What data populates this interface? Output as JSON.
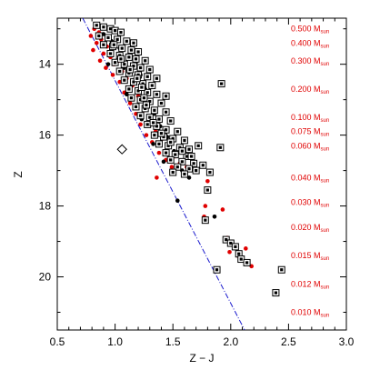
{
  "chart_data": {
    "type": "scatter",
    "xlabel": "Z − J",
    "ylabel": "Z",
    "xlim": [
      0.5,
      3.0
    ],
    "ylim": [
      21.5,
      12.7
    ],
    "y_inverted": true,
    "x_ticks": [
      "0.5",
      "1.0",
      "1.5",
      "2.0",
      "2.5",
      "3.0"
    ],
    "y_ticks": [
      "14",
      "16",
      "18",
      "20"
    ],
    "colors": {
      "red": "#e00000",
      "black": "#000000",
      "line": "#1a1acd"
    },
    "mass_labels": [
      {
        "value": "0.500",
        "unit": "M",
        "sub": "sun",
        "z": 13.0
      },
      {
        "value": "0.400",
        "unit": "M",
        "sub": "sun",
        "z": 13.4
      },
      {
        "value": "0.300",
        "unit": "M",
        "sub": "sun",
        "z": 13.9
      },
      {
        "value": "0.200",
        "unit": "M",
        "sub": "sun",
        "z": 14.7
      },
      {
        "value": "0.100",
        "unit": "M",
        "sub": "sun",
        "z": 15.5
      },
      {
        "value": "0.075",
        "unit": "M",
        "sub": "sun",
        "z": 15.9
      },
      {
        "value": "0.060",
        "unit": "M",
        "sub": "sun",
        "z": 16.3
      },
      {
        "value": "0.040",
        "unit": "M",
        "sub": "sun",
        "z": 17.2
      },
      {
        "value": "0.030",
        "unit": "M",
        "sub": "sun",
        "z": 17.9
      },
      {
        "value": "0.020",
        "unit": "M",
        "sub": "sun",
        "z": 18.6
      },
      {
        "value": "0.015",
        "unit": "M",
        "sub": "sun",
        "z": 19.4
      },
      {
        "value": "0.012",
        "unit": "M",
        "sub": "sun",
        "z": 20.2
      },
      {
        "value": "0.010",
        "unit": "M",
        "sub": "sun",
        "z": 21.0
      }
    ],
    "limit_line": [
      [
        0.72,
        12.7
      ],
      [
        2.12,
        21.5
      ]
    ],
    "diamond_point": [
      1.06,
      16.4
    ],
    "series": [
      {
        "marker": "filled-circle-red",
        "points": [
          [
            0.82,
            13.0
          ],
          [
            0.86,
            13.1
          ],
          [
            0.79,
            13.2
          ],
          [
            0.88,
            13.3
          ],
          [
            0.84,
            13.4
          ],
          [
            0.93,
            13.5
          ],
          [
            0.81,
            13.6
          ],
          [
            0.9,
            13.7
          ],
          [
            0.96,
            13.8
          ],
          [
            0.87,
            13.9
          ],
          [
            0.99,
            14.0
          ],
          [
            1.03,
            13.9
          ],
          [
            0.92,
            14.1
          ],
          [
            1.06,
            14.2
          ],
          [
            0.98,
            14.3
          ],
          [
            1.1,
            14.4
          ],
          [
            1.04,
            14.5
          ],
          [
            1.15,
            14.6
          ],
          [
            1.08,
            14.8
          ],
          [
            1.2,
            14.9
          ],
          [
            1.13,
            15.1
          ],
          [
            1.25,
            15.3
          ],
          [
            1.18,
            15.4
          ],
          [
            1.3,
            15.6
          ],
          [
            1.22,
            15.7
          ],
          [
            1.35,
            15.9
          ],
          [
            1.27,
            16.0
          ],
          [
            1.41,
            16.1
          ],
          [
            1.32,
            16.2
          ],
          [
            1.47,
            16.3
          ],
          [
            1.38,
            16.5
          ],
          [
            1.52,
            16.6
          ],
          [
            1.44,
            16.7
          ],
          [
            1.56,
            16.8
          ],
          [
            1.49,
            16.9
          ],
          [
            1.36,
            17.2
          ],
          [
            1.62,
            16.9
          ],
          [
            1.8,
            17.3
          ],
          [
            1.78,
            18.0
          ],
          [
            1.93,
            18.1
          ],
          [
            1.77,
            18.3
          ],
          [
            1.97,
            18.9
          ],
          [
            2.06,
            19.4
          ],
          [
            2.13,
            19.2
          ],
          [
            2.18,
            19.7
          ],
          [
            1.99,
            19.3
          ],
          [
            2.02,
            19.1
          ]
        ]
      },
      {
        "marker": "filled-circle-black",
        "points": [
          [
            0.9,
            13.15
          ],
          [
            0.97,
            13.35
          ],
          [
            1.04,
            13.55
          ],
          [
            1.11,
            13.75
          ],
          [
            1.18,
            13.95
          ],
          [
            1.08,
            14.1
          ],
          [
            1.22,
            14.3
          ],
          [
            0.94,
            14.0
          ],
          [
            1.15,
            14.55
          ],
          [
            1.26,
            14.7
          ],
          [
            1.1,
            14.85
          ],
          [
            1.29,
            15.0
          ],
          [
            1.17,
            15.2
          ],
          [
            1.34,
            15.4
          ],
          [
            1.23,
            15.55
          ],
          [
            1.39,
            15.75
          ],
          [
            1.45,
            16.05
          ],
          [
            1.33,
            16.25
          ],
          [
            1.51,
            16.45
          ],
          [
            1.42,
            16.75
          ],
          [
            1.58,
            17.0
          ],
          [
            1.64,
            17.2
          ],
          [
            1.54,
            17.85
          ],
          [
            1.86,
            18.3
          ]
        ]
      },
      {
        "marker": "boxed-square",
        "points": [
          [
            0.84,
            12.9
          ],
          [
            0.9,
            12.95
          ],
          [
            0.96,
            13.0
          ],
          [
            1.0,
            13.05
          ],
          [
            1.05,
            13.1
          ],
          [
            0.86,
            13.2
          ],
          [
            0.94,
            13.25
          ],
          [
            1.02,
            13.3
          ],
          [
            1.1,
            13.35
          ],
          [
            1.16,
            13.4
          ],
          [
            0.9,
            13.45
          ],
          [
            0.98,
            13.5
          ],
          [
            1.06,
            13.55
          ],
          [
            1.14,
            13.6
          ],
          [
            1.2,
            13.65
          ],
          [
            0.96,
            13.7
          ],
          [
            1.04,
            13.75
          ],
          [
            1.12,
            13.8
          ],
          [
            1.18,
            13.85
          ],
          [
            1.26,
            13.9
          ],
          [
            1.0,
            13.95
          ],
          [
            1.08,
            14.0
          ],
          [
            1.16,
            14.05
          ],
          [
            1.22,
            14.1
          ],
          [
            1.3,
            14.15
          ],
          [
            1.04,
            14.2
          ],
          [
            1.12,
            14.25
          ],
          [
            1.2,
            14.3
          ],
          [
            1.28,
            14.35
          ],
          [
            1.36,
            14.4
          ],
          [
            1.08,
            14.45
          ],
          [
            1.16,
            14.5
          ],
          [
            1.24,
            14.55
          ],
          [
            1.32,
            14.6
          ],
          [
            1.12,
            14.7
          ],
          [
            1.2,
            14.75
          ],
          [
            1.28,
            14.8
          ],
          [
            1.36,
            14.85
          ],
          [
            1.44,
            14.9
          ],
          [
            1.14,
            14.95
          ],
          [
            1.22,
            15.0
          ],
          [
            1.3,
            15.05
          ],
          [
            1.4,
            15.1
          ],
          [
            1.18,
            15.2
          ],
          [
            1.26,
            15.25
          ],
          [
            1.34,
            15.3
          ],
          [
            1.44,
            15.35
          ],
          [
            1.22,
            15.45
          ],
          [
            1.3,
            15.5
          ],
          [
            1.38,
            15.55
          ],
          [
            1.48,
            15.6
          ],
          [
            1.28,
            15.7
          ],
          [
            1.36,
            15.75
          ],
          [
            1.44,
            15.85
          ],
          [
            1.54,
            15.9
          ],
          [
            1.34,
            16.0
          ],
          [
            1.42,
            16.05
          ],
          [
            1.5,
            16.1
          ],
          [
            1.6,
            16.15
          ],
          [
            1.38,
            16.25
          ],
          [
            1.46,
            16.3
          ],
          [
            1.56,
            16.35
          ],
          [
            1.64,
            16.4
          ],
          [
            1.44,
            16.5
          ],
          [
            1.52,
            16.55
          ],
          [
            1.62,
            16.6
          ],
          [
            1.48,
            16.7
          ],
          [
            1.58,
            16.75
          ],
          [
            1.68,
            16.8
          ],
          [
            1.54,
            16.9
          ],
          [
            1.64,
            16.95
          ],
          [
            1.5,
            17.05
          ],
          [
            1.6,
            17.1
          ],
          [
            1.72,
            16.3
          ],
          [
            1.76,
            16.85
          ],
          [
            1.82,
            17.05
          ],
          [
            1.8,
            17.55
          ],
          [
            1.92,
            14.55
          ],
          [
            1.91,
            16.35
          ],
          [
            1.78,
            18.4
          ],
          [
            1.96,
            18.95
          ],
          [
            2.0,
            19.05
          ],
          [
            2.04,
            19.15
          ],
          [
            2.07,
            19.35
          ],
          [
            2.09,
            19.5
          ],
          [
            2.14,
            19.6
          ],
          [
            1.88,
            19.8
          ],
          [
            2.44,
            19.8
          ],
          [
            2.39,
            20.45
          ],
          [
            0.99,
            13.45
          ],
          [
            1.05,
            13.85
          ],
          [
            1.13,
            14.15
          ],
          [
            1.19,
            14.4
          ],
          [
            1.23,
            14.65
          ],
          [
            1.25,
            14.95
          ],
          [
            1.27,
            15.15
          ],
          [
            1.33,
            15.65
          ],
          [
            1.4,
            15.95
          ],
          [
            1.48,
            16.2
          ],
          [
            1.58,
            16.45
          ],
          [
            1.66,
            16.6
          ],
          [
            1.7,
            17.0
          ]
        ]
      }
    ]
  }
}
